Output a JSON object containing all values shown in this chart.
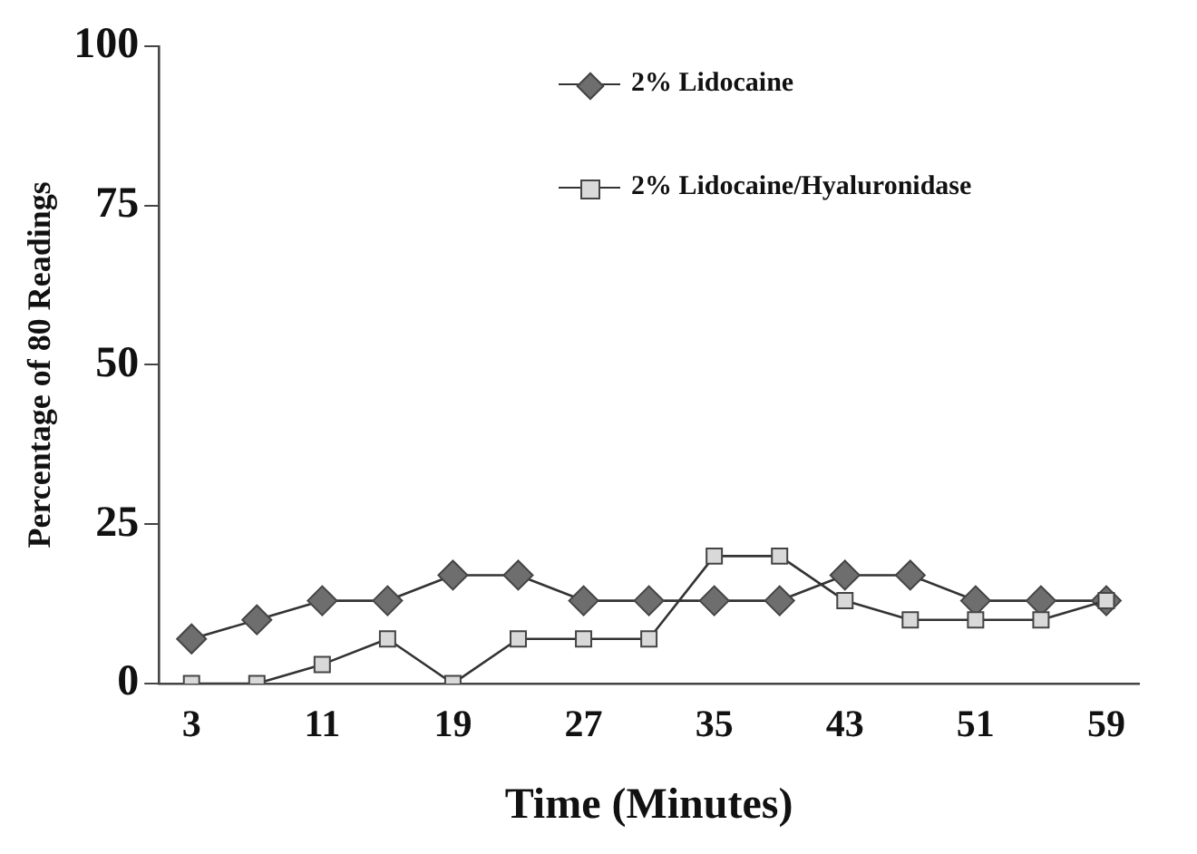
{
  "chart_data": {
    "type": "line",
    "xlabel": "Time (Minutes)",
    "ylabel": "Percentage of 80 Readings",
    "categories": [
      "3",
      null,
      "11",
      null,
      "19",
      null,
      "27",
      null,
      "35",
      null,
      "43",
      null,
      "51",
      null,
      "59"
    ],
    "series": [
      {
        "name": "2% Lidocaine",
        "color": "#6e6e6e",
        "marker": "diamond",
        "values": [
          7,
          10,
          13,
          13,
          17,
          17,
          13,
          13,
          13,
          13,
          17,
          17,
          13,
          13,
          13
        ]
      },
      {
        "name": "2% Lidocaine/Hyaluronidase",
        "color": "#d9d9d9",
        "marker": "square",
        "values": [
          0,
          0,
          3,
          7,
          0,
          7,
          7,
          7,
          20,
          20,
          13,
          10,
          10,
          10,
          13
        ]
      }
    ],
    "ylim": [
      0,
      100
    ],
    "yticks": [
      0,
      25,
      50,
      75,
      100
    ],
    "grid": false,
    "legend": "top right",
    "line_style": "solid"
  }
}
